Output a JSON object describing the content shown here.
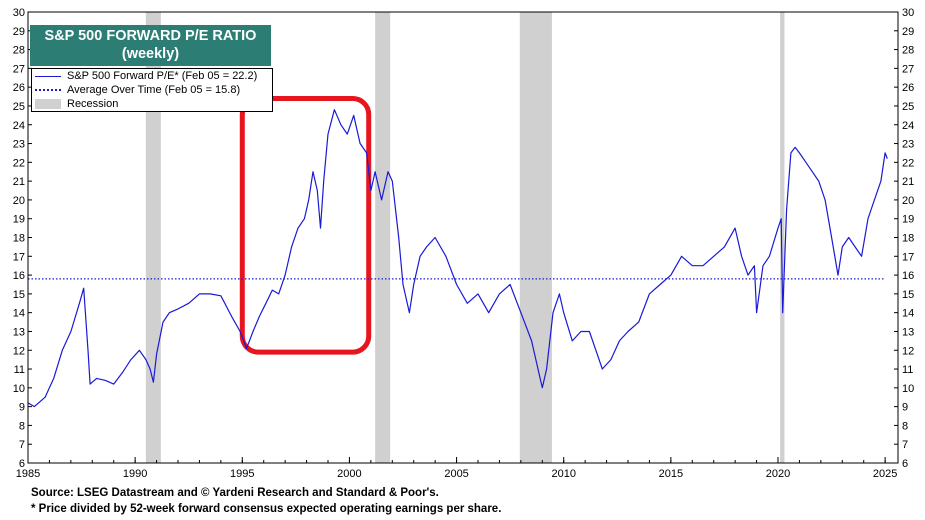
{
  "title_box": {
    "line1": "S&P 500 FORWARD P/E RATIO",
    "line2": "(weekly)"
  },
  "legend": {
    "series_label": "S&P 500 Forward P/E* (Feb 05 = 22.2)",
    "average_label": "Average Over Time (Feb 05 = 15.8)",
    "recession_label": "Recession"
  },
  "footer": {
    "source": "Source: LSEG Datastream and © Yardeni Research and Standard & Poor's.",
    "note": "* Price divided by 52-week forward consensus expected operating earnings per share."
  },
  "colors": {
    "series": "#1a1ad6",
    "average": "#1a1ad6",
    "recession": "#d0d0d0",
    "highlight": "#e8141e",
    "title_bg": "#2c7d74"
  },
  "chart_data": {
    "type": "line",
    "xlim": [
      1985,
      2025.6
    ],
    "ylim": [
      6,
      30
    ],
    "x_ticks": [
      1985,
      1990,
      1995,
      2000,
      2005,
      2010,
      2015,
      2020,
      2025
    ],
    "y_ticks": [
      6,
      7,
      8,
      9,
      10,
      11,
      12,
      13,
      14,
      15,
      16,
      17,
      18,
      19,
      20,
      21,
      22,
      23,
      24,
      25,
      26,
      27,
      28,
      29,
      30
    ],
    "y_axis_both_sides": true,
    "average": 15.8,
    "recessions": [
      [
        1990.5,
        1991.2
      ],
      [
        2001.2,
        2001.9
      ],
      [
        2007.95,
        2009.45
      ],
      [
        2020.1,
        2020.3
      ]
    ],
    "highlight_box": {
      "x": [
        1995.0,
        2000.9
      ],
      "y": [
        11.9,
        25.4
      ],
      "label": ""
    },
    "series": [
      {
        "name": "S&P 500 Forward P/E*",
        "x": [
          1985.0,
          1985.3,
          1985.8,
          1986.2,
          1986.6,
          1987.0,
          1987.4,
          1987.6,
          1987.8,
          1987.9,
          1988.2,
          1988.6,
          1989.0,
          1989.4,
          1989.8,
          1990.2,
          1990.5,
          1990.7,
          1990.85,
          1991.0,
          1991.3,
          1991.6,
          1992.0,
          1992.5,
          1993.0,
          1993.5,
          1994.0,
          1994.5,
          1994.9,
          1995.2,
          1995.5,
          1995.8,
          1996.1,
          1996.4,
          1996.7,
          1997.0,
          1997.3,
          1997.6,
          1997.9,
          1998.1,
          1998.3,
          1998.5,
          1998.65,
          1998.8,
          1999.0,
          1999.3,
          1999.6,
          1999.9,
          2000.2,
          2000.5,
          2000.8,
          2001.0,
          2001.2,
          2001.5,
          2001.8,
          2002.0,
          2002.3,
          2002.5,
          2002.8,
          2003.0,
          2003.3,
          2003.6,
          2004.0,
          2004.5,
          2005.0,
          2005.5,
          2006.0,
          2006.5,
          2007.0,
          2007.5,
          2008.0,
          2008.5,
          2008.8,
          2009.0,
          2009.2,
          2009.5,
          2009.8,
          2010.0,
          2010.4,
          2010.8,
          2011.2,
          2011.5,
          2011.8,
          2012.2,
          2012.6,
          2013.0,
          2013.5,
          2014.0,
          2014.5,
          2015.0,
          2015.5,
          2016.0,
          2016.5,
          2017.0,
          2017.5,
          2018.0,
          2018.3,
          2018.6,
          2018.9,
          2019.0,
          2019.3,
          2019.6,
          2020.0,
          2020.15,
          2020.22,
          2020.4,
          2020.6,
          2020.8,
          2021.0,
          2021.3,
          2021.6,
          2021.9,
          2022.2,
          2022.5,
          2022.8,
          2023.0,
          2023.3,
          2023.6,
          2023.9,
          2024.2,
          2024.5,
          2024.8,
          2025.0,
          2025.1
        ],
        "y": [
          9.2,
          9.0,
          9.5,
          10.5,
          12.0,
          13.0,
          14.5,
          15.3,
          12.0,
          10.2,
          10.5,
          10.4,
          10.2,
          10.8,
          11.5,
          12.0,
          11.5,
          11.0,
          10.3,
          11.8,
          13.5,
          14.0,
          14.2,
          14.5,
          15.0,
          15.0,
          14.9,
          13.8,
          13.0,
          12.1,
          13.0,
          13.8,
          14.5,
          15.2,
          15.0,
          16.0,
          17.5,
          18.5,
          19.0,
          20.0,
          21.5,
          20.5,
          18.5,
          21.0,
          23.5,
          24.8,
          24.0,
          23.5,
          24.5,
          23.0,
          22.5,
          20.5,
          21.5,
          20.0,
          21.5,
          21.0,
          18.0,
          15.5,
          14.0,
          15.5,
          17.0,
          17.5,
          18.0,
          17.0,
          15.5,
          14.5,
          15.0,
          14.0,
          15.0,
          15.5,
          14.0,
          12.5,
          11.0,
          10.0,
          11.0,
          14.0,
          15.0,
          14.0,
          12.5,
          13.0,
          13.0,
          12.0,
          11.0,
          11.5,
          12.5,
          13.0,
          13.5,
          15.0,
          15.5,
          16.0,
          17.0,
          16.5,
          16.5,
          17.0,
          17.5,
          18.5,
          17.0,
          16.0,
          16.5,
          14.0,
          16.5,
          17.0,
          18.5,
          19.0,
          14.0,
          19.5,
          22.5,
          22.8,
          22.5,
          22.0,
          21.5,
          21.0,
          20.0,
          18.0,
          16.0,
          17.5,
          18.0,
          17.5,
          17.0,
          19.0,
          20.0,
          21.0,
          22.5,
          22.2
        ]
      }
    ]
  }
}
